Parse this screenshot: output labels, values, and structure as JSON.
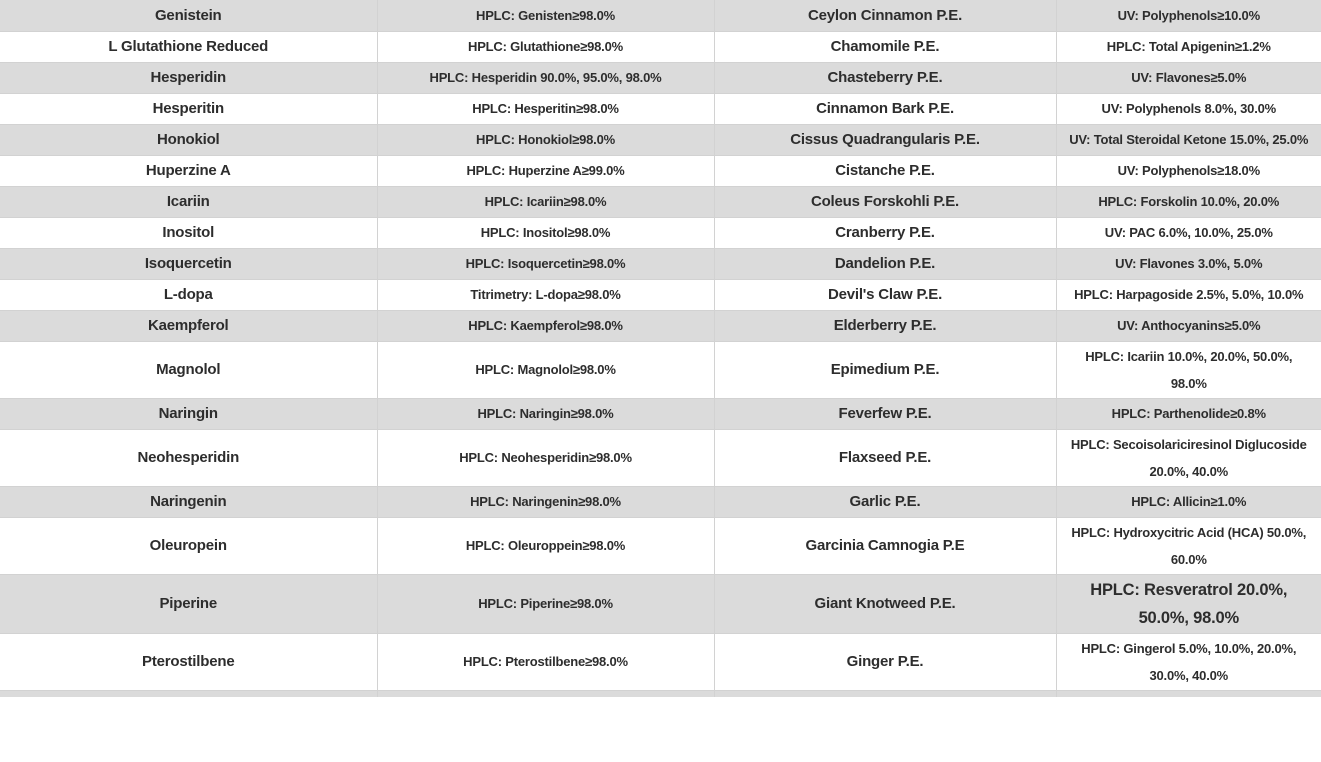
{
  "colors": {
    "row_stripe_gray": "#dbdbdb",
    "row_white": "#ffffff",
    "cell_border": "#d2d2d2",
    "text": "#2d2d2d"
  },
  "table": {
    "rows": [
      {
        "cells": [
          "Genistein",
          "HPLC: Genisten≥98.0%",
          "Ceylon Cinnamon P.E.",
          "UV: Polyphenols≥10.0%"
        ]
      },
      {
        "cells": [
          "L Glutathione Reduced",
          "HPLC: Glutathione≥98.0%",
          "Chamomile P.E.",
          "HPLC: Total Apigenin≥1.2%"
        ]
      },
      {
        "cells": [
          "Hesperidin",
          "HPLC: Hesperidin 90.0%, 95.0%, 98.0%",
          "Chasteberry P.E.",
          "UV: Flavones≥5.0%"
        ]
      },
      {
        "cells": [
          "Hesperitin",
          "HPLC: Hesperitin≥98.0%",
          "Cinnamon Bark P.E.",
          "UV: Polyphenols 8.0%, 30.0%"
        ]
      },
      {
        "cells": [
          "Honokiol",
          "HPLC: Honokiol≥98.0%",
          "Cissus Quadrangularis P.E.",
          "UV: Total Steroidal Ketone 15.0%, 25.0%"
        ]
      },
      {
        "cells": [
          "Huperzine A",
          "HPLC: Huperzine A≥99.0%",
          "Cistanche P.E.",
          "UV: Polyphenols≥18.0%"
        ]
      },
      {
        "cells": [
          "Icariin",
          "HPLC: Icariin≥98.0%",
          "Coleus Forskohli P.E.",
          "HPLC: Forskolin 10.0%, 20.0%"
        ]
      },
      {
        "cells": [
          "Inositol",
          "HPLC: Inositol≥98.0%",
          "Cranberry P.E.",
          "UV: PAC 6.0%, 10.0%, 25.0%"
        ]
      },
      {
        "cells": [
          "Isoquercetin",
          "HPLC: Isoquercetin≥98.0%",
          "Dandelion P.E.",
          "UV: Flavones 3.0%, 5.0%"
        ]
      },
      {
        "cells": [
          "L-dopa",
          "Titrimetry: L-dopa≥98.0%",
          "Devil's Claw P.E.",
          "HPLC: Harpagoside 2.5%, 5.0%, 10.0%"
        ]
      },
      {
        "cells": [
          "Kaempferol",
          "HPLC: Kaempferol≥98.0%",
          "Elderberry P.E.",
          "UV: Anthocyanins≥5.0%"
        ]
      },
      {
        "cells": [
          "Magnolol",
          "HPLC: Magnolol≥98.0%",
          "Epimedium P.E.",
          "HPLC: Icariin 10.0%, 20.0%, 50.0%, 98.0%"
        ]
      },
      {
        "cells": [
          "Naringin",
          "HPLC: Naringin≥98.0%",
          "Feverfew P.E.",
          "HPLC: Parthenolide≥0.8%"
        ]
      },
      {
        "cells": [
          "Neohesperidin",
          "HPLC: Neohesperidin≥98.0%",
          "Flaxseed P.E.",
          "HPLC: Secoisolariciresinol Diglucoside 20.0%, 40.0%"
        ]
      },
      {
        "cells": [
          "Naringenin",
          "HPLC: Naringenin≥98.0%",
          "Garlic P.E.",
          "HPLC: Allicin≥1.0%"
        ]
      },
      {
        "cells": [
          "Oleuropein",
          "HPLC: Oleuroppein≥98.0%",
          "Garcinia Camnogia P.E",
          "HPLC: Hydroxycitric Acid (HCA) 50.0%, 60.0%"
        ]
      },
      {
        "cells": [
          "Piperine",
          "HPLC: Piperine≥98.0%",
          "Giant Knotweed P.E.",
          "HPLC: Resveratrol 20.0%, 50.0%, 98.0%"
        ],
        "emphasis": "spec2"
      },
      {
        "cells": [
          "Pterostilbene",
          "HPLC: Pterostilbene≥98.0%",
          "Ginger P.E.",
          "HPLC: Gingerol 5.0%, 10.0%, 20.0%, 30.0%, 40.0%"
        ]
      },
      {
        "cells": [
          "",
          "",
          "",
          ""
        ],
        "partial": true
      }
    ]
  }
}
